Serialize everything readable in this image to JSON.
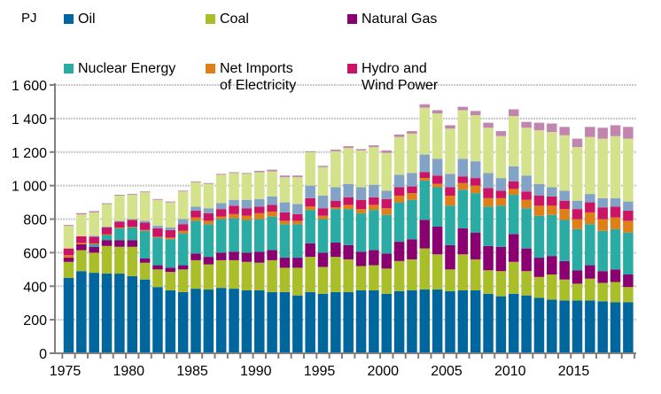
{
  "chart_data": {
    "type": "bar",
    "stacked": true,
    "ylabel": "PJ",
    "ylim": [
      0,
      1600
    ],
    "yticks": [
      0,
      200,
      400,
      600,
      800,
      1000,
      1200,
      1400,
      1600
    ],
    "ytick_labels": [
      "0",
      "200",
      "400",
      "600",
      "800",
      "1 000",
      "1 200",
      "1 400",
      "1 600"
    ],
    "xtick_labels": [
      "1975",
      "1980",
      "1985",
      "1990",
      "1995",
      "2000",
      "2005",
      "2010",
      "2015"
    ],
    "grid": "horizontal-dotted",
    "legend_placement": "top",
    "categories": [
      1975,
      1976,
      1977,
      1978,
      1979,
      1980,
      1981,
      1982,
      1983,
      1984,
      1985,
      1986,
      1987,
      1988,
      1989,
      1990,
      1991,
      1992,
      1993,
      1994,
      1995,
      1996,
      1997,
      1998,
      1999,
      2000,
      2001,
      2002,
      2003,
      2004,
      2005,
      2006,
      2007,
      2008,
      2009,
      2010,
      2011,
      2012,
      2013,
      2014,
      2015,
      2016,
      2017,
      2018,
      2019
    ],
    "series": [
      {
        "name": "Oil",
        "color": "#00669e",
        "values": [
          450,
          490,
          480,
          475,
          475,
          460,
          440,
          395,
          375,
          365,
          385,
          380,
          390,
          385,
          375,
          375,
          365,
          365,
          345,
          365,
          355,
          365,
          365,
          375,
          375,
          355,
          370,
          375,
          380,
          380,
          370,
          375,
          375,
          355,
          340,
          355,
          345,
          330,
          320,
          315,
          315,
          315,
          310,
          305,
          305
        ]
      },
      {
        "name": "Coal",
        "color": "#a9be28",
        "values": [
          95,
          125,
          120,
          165,
          160,
          175,
          100,
          105,
          110,
          135,
          170,
          150,
          165,
          170,
          170,
          165,
          190,
          145,
          165,
          210,
          160,
          210,
          195,
          145,
          150,
          150,
          180,
          185,
          245,
          210,
          130,
          215,
          185,
          140,
          150,
          190,
          145,
          125,
          150,
          125,
          100,
          130,
          110,
          120,
          90
        ]
      },
      {
        "name": "Natural Gas",
        "color": "#8b0070",
        "values": [
          25,
          35,
          35,
          35,
          40,
          40,
          25,
          25,
          25,
          25,
          40,
          45,
          45,
          50,
          55,
          65,
          60,
          60,
          60,
          80,
          85,
          85,
          85,
          85,
          90,
          90,
          115,
          120,
          170,
          165,
          145,
          155,
          160,
          145,
          145,
          165,
          135,
          115,
          110,
          110,
          80,
          80,
          70,
          75,
          75
        ]
      },
      {
        "name": "Nuclear Energy",
        "color": "#2aaca5",
        "values": [
          0,
          0,
          15,
          30,
          70,
          75,
          165,
          165,
          170,
          190,
          195,
          195,
          200,
          200,
          195,
          195,
          200,
          200,
          200,
          200,
          200,
          200,
          215,
          230,
          240,
          230,
          235,
          235,
          235,
          235,
          235,
          230,
          235,
          235,
          245,
          235,
          240,
          250,
          245,
          245,
          245,
          245,
          240,
          240,
          250
        ]
      },
      {
        "name": "Net Imports\nof Electricity",
        "color": "#df7f18",
        "values": [
          15,
          8,
          5,
          5,
          5,
          5,
          5,
          5,
          10,
          15,
          20,
          20,
          15,
          25,
          25,
          35,
          30,
          20,
          20,
          20,
          20,
          10,
          25,
          25,
          30,
          40,
          40,
          40,
          15,
          20,
          60,
          40,
          45,
          50,
          45,
          35,
          50,
          60,
          55,
          65,
          60,
          70,
          70,
          70,
          70
        ]
      },
      {
        "name": "Hydro and\nWind Power",
        "color": "#cc1466",
        "values": [
          40,
          40,
          40,
          40,
          35,
          40,
          45,
          50,
          45,
          40,
          40,
          45,
          45,
          50,
          45,
          40,
          40,
          50,
          40,
          50,
          45,
          40,
          45,
          55,
          45,
          55,
          50,
          40,
          35,
          50,
          50,
          40,
          45,
          60,
          45,
          45,
          50,
          60,
          55,
          50,
          60,
          60,
          70,
          65,
          60
        ]
      },
      {
        "color": "#82a3c6",
        "values": [
          0,
          0,
          5,
          5,
          5,
          5,
          10,
          15,
          15,
          30,
          25,
          30,
          35,
          35,
          50,
          45,
          50,
          60,
          60,
          75,
          75,
          80,
          80,
          75,
          75,
          50,
          75,
          80,
          105,
          100,
          80,
          105,
          100,
          90,
          75,
          90,
          95,
          70,
          55,
          60,
          50,
          50,
          55,
          50,
          55
        ]
      },
      {
        "color": "#d3e28b",
        "values": [
          135,
          130,
          140,
          135,
          150,
          145,
          170,
          155,
          150,
          165,
          145,
          145,
          170,
          160,
          155,
          160,
          150,
          150,
          160,
          200,
          170,
          215,
          215,
          220,
          225,
          225,
          225,
          235,
          280,
          270,
          270,
          290,
          275,
          270,
          250,
          300,
          285,
          320,
          330,
          330,
          320,
          340,
          355,
          370,
          375
        ]
      },
      {
        "color": "#c185b0",
        "values": [
          5,
          8,
          8,
          5,
          5,
          5,
          5,
          5,
          5,
          5,
          5,
          5,
          5,
          5,
          5,
          8,
          10,
          10,
          10,
          5,
          8,
          10,
          10,
          8,
          10,
          15,
          15,
          15,
          20,
          20,
          20,
          20,
          25,
          30,
          30,
          40,
          35,
          45,
          50,
          50,
          50,
          60,
          65,
          65,
          70
        ]
      }
    ]
  }
}
